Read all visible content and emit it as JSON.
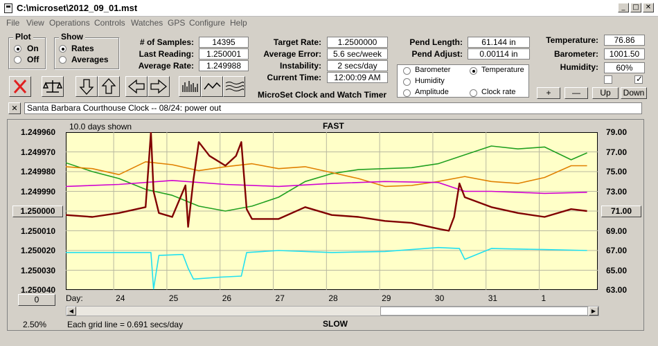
{
  "window": {
    "title": "C:\\microset\\2012_09_01.mst",
    "buttons": {
      "minimize": "_",
      "maximize": "□",
      "close": "✕"
    }
  },
  "menu": [
    "File",
    "View",
    "Operations",
    "Controls",
    "Watches",
    "GPS",
    "Configure",
    "Help"
  ],
  "plot_group": {
    "title": "Plot",
    "on": "On",
    "off": "Off",
    "selected": "On"
  },
  "show_group": {
    "title": "Show",
    "rates": "Rates",
    "averages": "Averages",
    "selected": "Rates"
  },
  "stats": {
    "samples_label": "# of Samples:",
    "samples": "14395",
    "last_reading_label": "Last Reading:",
    "last_reading": "1.250001",
    "average_rate_label": "Average Rate:",
    "average_rate": "1.249988",
    "target_rate_label": "Target Rate:",
    "target_rate": "1.2500000",
    "average_error_label": "Average Error:",
    "average_error": "5.6 sec/week",
    "instability_label": "Instability:",
    "instability": "2 secs/day",
    "current_time_label": "Current Time:",
    "current_time": "12:00:09 AM",
    "pend_length_label": "Pend Length:",
    "pend_length": "61.144 in",
    "pend_adjust_label": "Pend Adjust:",
    "pend_adjust": "0.00114 in",
    "temperature_label": "Temperature:",
    "temperature": "76.86",
    "barometer_label": "Barometer:",
    "barometer": "1001.50",
    "humidity_label": "Humidity:",
    "humidity": "60%"
  },
  "app_name": "MicroSet Clock and Watch Timer",
  "sensor_selector": {
    "barometer": "Barometer",
    "temperature": "Temperature",
    "humidity": "Humidity",
    "amplitude": "Amplitude",
    "clock_rate": "Clock rate",
    "selected": "Temperature"
  },
  "scale_buttons": {
    "plus": "+",
    "minus": "—",
    "up": "Up",
    "down": "Down"
  },
  "note": {
    "close": "✕",
    "text": "Santa Barbara Courthouse Clock  --  08/24: power out"
  },
  "chart": {
    "days_shown": "10.0 days shown",
    "top_label": "FAST",
    "bottom_label": "SLOW",
    "left_button": "1.250000",
    "right_button": "71.00",
    "zero_button": "0",
    "day_label": "Day:",
    "percent": "2.50%",
    "grid_note": "Each grid line = 0.691 secs/day"
  },
  "colors": {
    "plot_bg": "#ffffc8",
    "rate": "#800000",
    "barometer": "#e08000",
    "temperature": "#20a020",
    "humidity": "#d000d0",
    "amplitude": "#20e0f0",
    "red_x": "#e02020"
  },
  "chart_data": {
    "type": "line",
    "title": "",
    "xlabel": "Day:",
    "x_ticks": [
      "24",
      "25",
      "26",
      "27",
      "28",
      "29",
      "30",
      "31",
      "1"
    ],
    "y_left_ticks": [
      "1.249960",
      "1.249970",
      "1.249980",
      "1.249990",
      "1.250000",
      "1.250010",
      "1.250020",
      "1.250030",
      "1.250040"
    ],
    "y_right_ticks": [
      "79.00",
      "77.00",
      "75.00",
      "73.00",
      "71.00",
      "69.00",
      "67.00",
      "65.00",
      "63.00"
    ],
    "ylim_left": [
      1.24996,
      1.25004
    ],
    "ylim_right": [
      63,
      79
    ],
    "xlim": [
      23.1,
      33.1
    ],
    "grid": true,
    "series": [
      {
        "name": "Temperature",
        "axis": "right",
        "x": [
          23.1,
          23.6,
          24.1,
          24.6,
          25.1,
          25.6,
          26.1,
          26.6,
          27.1,
          27.6,
          28.1,
          28.6,
          29.1,
          29.6,
          30.1,
          30.6,
          31.1,
          31.6,
          32.1,
          32.6,
          32.9
        ],
        "y": [
          75.9,
          75.0,
          74.3,
          73.2,
          72.6,
          71.5,
          71.0,
          71.5,
          72.4,
          74.0,
          74.8,
          75.2,
          75.3,
          75.4,
          75.8,
          76.7,
          77.6,
          77.3,
          77.5,
          76.2,
          76.9
        ]
      },
      {
        "name": "Barometer",
        "axis": "right",
        "x": [
          23.1,
          23.6,
          24.1,
          24.6,
          25.1,
          25.6,
          26.1,
          26.6,
          27.1,
          27.6,
          28.1,
          28.6,
          29.1,
          29.6,
          30.1,
          30.6,
          31.1,
          31.6,
          32.1,
          32.6,
          32.9
        ],
        "y": [
          75.5,
          75.3,
          74.7,
          76.0,
          75.7,
          75.1,
          75.5,
          75.8,
          75.3,
          75.5,
          74.9,
          74.3,
          73.5,
          73.6,
          74.0,
          74.5,
          74.0,
          73.8,
          74.4,
          75.6,
          75.6
        ]
      },
      {
        "name": "Humidity",
        "axis": "right",
        "x": [
          23.1,
          24.1,
          25.1,
          26.1,
          27.1,
          28.1,
          29.1,
          30.1,
          30.6,
          31.1,
          32.1,
          32.9
        ],
        "y": [
          73.5,
          73.7,
          74.1,
          73.7,
          73.5,
          73.8,
          74.0,
          73.9,
          73.0,
          73.0,
          72.8,
          72.9
        ]
      },
      {
        "name": "Amplitude",
        "axis": "right",
        "x": [
          23.1,
          24.1,
          24.7,
          24.75,
          24.85,
          25.3,
          25.4,
          25.5,
          26.0,
          26.4,
          26.5,
          27.1,
          28.1,
          29.1,
          30.1,
          30.5,
          30.6,
          31.1,
          32.1,
          32.9
        ],
        "y": [
          66.8,
          66.8,
          66.8,
          63.1,
          66.5,
          66.6,
          65.2,
          64.1,
          64.3,
          64.4,
          66.8,
          67.0,
          66.8,
          66.9,
          67.3,
          67.2,
          66.1,
          67.2,
          67.1,
          67.0
        ]
      },
      {
        "name": "Rate",
        "axis": "left",
        "x": [
          23.1,
          23.6,
          24.1,
          24.6,
          24.7,
          24.75,
          24.85,
          25.1,
          25.35,
          25.4,
          25.5,
          25.6,
          25.8,
          26.1,
          26.3,
          26.4,
          26.5,
          26.6,
          27.1,
          27.6,
          28.1,
          28.6,
          29.1,
          29.6,
          30.1,
          30.3,
          30.4,
          30.5,
          30.6,
          31.1,
          31.6,
          32.1,
          32.6,
          32.9
        ],
        "y": [
          1.250002,
          1.250003,
          1.250001,
          1.249998,
          1.24996,
          1.24999,
          1.250001,
          1.250003,
          1.249987,
          1.250008,
          1.249984,
          1.249965,
          1.249972,
          1.249977,
          1.249972,
          1.249965,
          1.249999,
          1.250004,
          1.250004,
          1.249998,
          1.250002,
          1.250003,
          1.250005,
          1.250006,
          1.250009,
          1.25001,
          1.250003,
          1.249986,
          1.249993,
          1.249998,
          1.250001,
          1.250003,
          1.249999,
          1.25
        ]
      }
    ]
  }
}
